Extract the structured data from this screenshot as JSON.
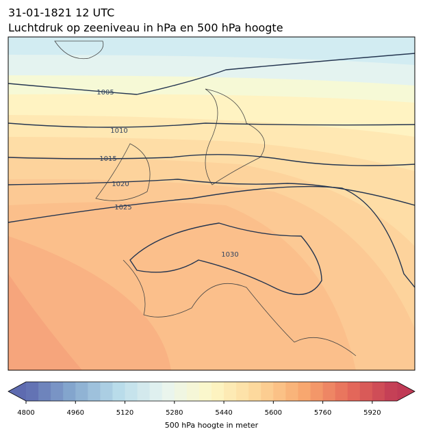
{
  "header": {
    "line1": "31-01-1821 12 UTC",
    "line2": "Luchtdruk op zeeniveau in hPa en 500 hPa hoogte"
  },
  "isobars": [
    {
      "label": "1005"
    },
    {
      "label": "1010"
    },
    {
      "label": "1015"
    },
    {
      "label": "1020"
    },
    {
      "label": "1025"
    },
    {
      "label": "1030"
    }
  ],
  "colorbar": {
    "lim": [
      4800,
      6000
    ],
    "levels": 30,
    "ticks": [
      4800,
      4960,
      5120,
      5280,
      5440,
      5600,
      5760,
      5920
    ],
    "label": "500 hPa hoogte in meter",
    "cmap": [
      "#5e6bb0",
      "#86a9cf",
      "#b9dcea",
      "#e9f5f0",
      "#fdf7c6",
      "#fdd79a",
      "#f8a76f",
      "#e56a5a",
      "#c03a55"
    ]
  }
}
